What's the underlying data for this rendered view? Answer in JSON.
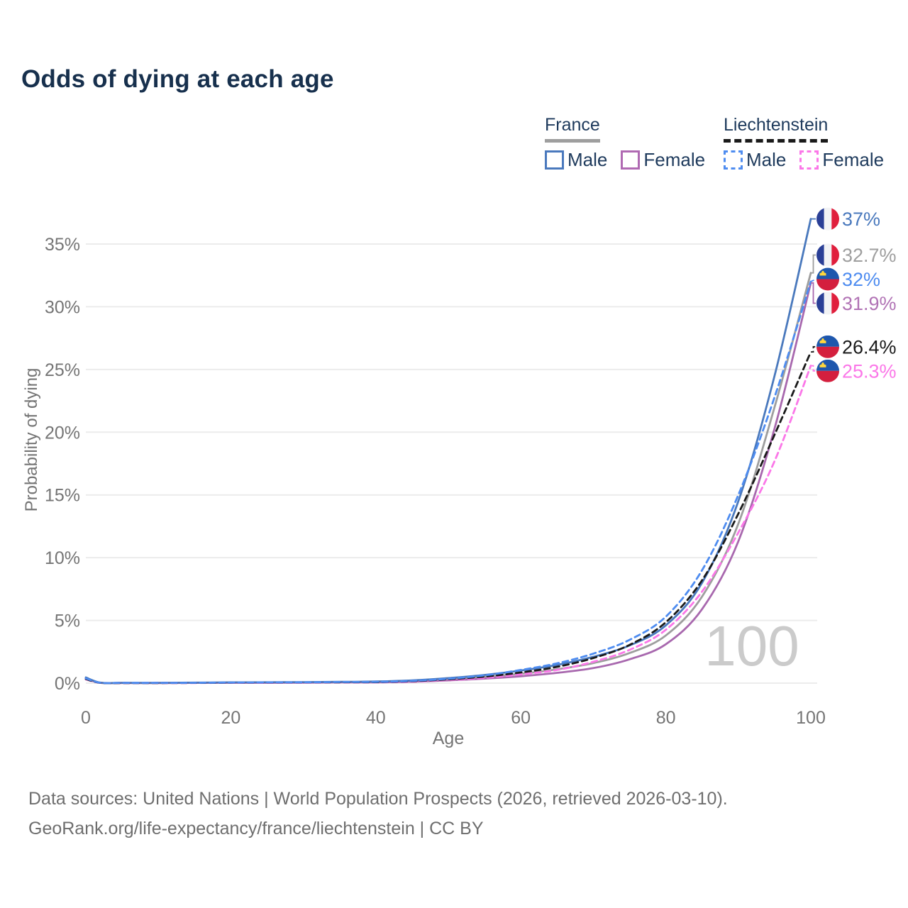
{
  "title": "Odds of dying at each age",
  "legend": {
    "groups": [
      {
        "title": "France",
        "underline_style": "solid",
        "underline_color": "#9e9e9e",
        "items": [
          {
            "label": "Male",
            "color": "#4a79bd",
            "dashed": false
          },
          {
            "label": "Female",
            "color": "#b06ab3",
            "dashed": false
          }
        ]
      },
      {
        "title": "Liechtenstein",
        "underline_style": "dashed",
        "underline_color": "#1a1a1a",
        "items": [
          {
            "label": "Male",
            "color": "#4e8cf0",
            "dashed": true
          },
          {
            "label": "Female",
            "color": "#fb77e8",
            "dashed": true
          }
        ]
      }
    ]
  },
  "chart_data": {
    "type": "line",
    "title": "Odds of dying at each age",
    "xlabel": "Age",
    "ylabel": "Probability of dying",
    "x_ticks": [
      "0",
      "20",
      "40",
      "60",
      "80",
      "100"
    ],
    "x_tick_values": [
      0,
      20,
      40,
      60,
      80,
      100
    ],
    "y_ticks": [
      "0%",
      "5%",
      "10%",
      "15%",
      "20%",
      "25%",
      "30%",
      "35%"
    ],
    "y_tick_values": [
      0,
      5,
      10,
      15,
      20,
      25,
      30,
      35
    ],
    "xlim": [
      0,
      100
    ],
    "ylim": [
      0,
      38.5
    ],
    "grid": "horizontal",
    "legend_position": "top-right",
    "watermark": "100",
    "ages": [
      0,
      2,
      5,
      10,
      15,
      20,
      25,
      30,
      35,
      40,
      45,
      50,
      55,
      60,
      65,
      70,
      75,
      80,
      85,
      90,
      95,
      100
    ],
    "series": [
      {
        "name": "France Male",
        "country": "france",
        "sex": "male",
        "color": "#4a79bd",
        "label_color": "#4a79bd",
        "dashed": false,
        "z": 3,
        "end_label": "37%",
        "end_value": 37.0,
        "values": [
          0.45,
          0.04,
          0.02,
          0.02,
          0.04,
          0.06,
          0.07,
          0.08,
          0.1,
          0.13,
          0.22,
          0.4,
          0.65,
          1.0,
          1.45,
          2.1,
          3.0,
          4.6,
          8.0,
          14.5,
          24.5,
          37.0
        ]
      },
      {
        "name": "France Both sexes",
        "country": "france",
        "sex": "both",
        "color": "#9e9e9e",
        "label_color": "#9e9e9e",
        "dashed": false,
        "z": 1,
        "end_label": "32.7%",
        "end_value": 32.7,
        "values": [
          0.4,
          0.03,
          0.02,
          0.01,
          0.03,
          0.04,
          0.05,
          0.06,
          0.08,
          0.1,
          0.17,
          0.3,
          0.5,
          0.75,
          1.1,
          1.6,
          2.4,
          3.8,
          6.9,
          12.7,
          22.0,
          32.7
        ]
      },
      {
        "name": "Liechtenstein Male",
        "country": "liechtenstein",
        "sex": "male",
        "color": "#4e8cf0",
        "label_color": "#4e8cf0",
        "dashed": true,
        "z": 6,
        "end_label": "32%",
        "end_value": 32.0,
        "values": [
          0.38,
          0.03,
          0.02,
          0.02,
          0.03,
          0.05,
          0.06,
          0.07,
          0.09,
          0.1,
          0.18,
          0.35,
          0.62,
          1.05,
          1.58,
          2.35,
          3.45,
          5.3,
          9.0,
          15.0,
          22.8,
          32.0
        ]
      },
      {
        "name": "France Female",
        "country": "france",
        "sex": "female",
        "color": "#a868ae",
        "label_color": "#b173b5",
        "dashed": false,
        "z": 2,
        "end_label": "31.9%",
        "end_value": 31.9,
        "values": [
          0.35,
          0.03,
          0.01,
          0.01,
          0.02,
          0.03,
          0.03,
          0.04,
          0.06,
          0.07,
          0.12,
          0.22,
          0.36,
          0.55,
          0.82,
          1.2,
          1.9,
          3.1,
          5.9,
          11.3,
          20.3,
          31.9
        ]
      },
      {
        "name": "Liechtenstein Both sexes",
        "country": "liechtenstein",
        "sex": "both",
        "color": "#1a1a1a",
        "label_color": "#1a1a1a",
        "dashed": true,
        "z": 5,
        "end_label": "26.4%",
        "end_value": 26.4,
        "values": [
          0.33,
          0.02,
          0.01,
          0.01,
          0.02,
          0.04,
          0.05,
          0.06,
          0.07,
          0.08,
          0.15,
          0.3,
          0.52,
          0.85,
          1.3,
          2.0,
          3.05,
          4.85,
          8.2,
          13.5,
          19.8,
          26.4
        ]
      },
      {
        "name": "Liechtenstein Female",
        "country": "liechtenstein",
        "sex": "female",
        "color": "#fb77e8",
        "label_color": "#fb77e8",
        "dashed": true,
        "z": 4,
        "end_label": "25.3%",
        "end_value": 25.3,
        "values": [
          0.3,
          0.02,
          0.01,
          0.01,
          0.01,
          0.03,
          0.03,
          0.04,
          0.05,
          0.06,
          0.11,
          0.25,
          0.42,
          0.7,
          1.05,
          1.7,
          2.65,
          4.25,
          7.3,
          12.0,
          17.7,
          25.3
        ]
      }
    ],
    "flag_colors": {
      "france_blue": "#2a3f96",
      "france_white": "#f2f3f5",
      "france_red": "#e01f3d",
      "liechtenstein_blue": "#1e57ad",
      "liechtenstein_red": "#d41f3e",
      "liechtenstein_crown": "#ffd63c"
    },
    "style": {
      "grid_color": "#ececec",
      "axis_text_color": "#757575",
      "watermark_color": "#cbcbcb",
      "title_color": "#17304d"
    }
  },
  "footer": {
    "lines": [
      "Data sources: United Nations | World Population Prospects (2026, retrieved 2026-03-10).",
      "GeoRank.org/life-expectancy/france/liechtenstein | CC BY"
    ]
  }
}
